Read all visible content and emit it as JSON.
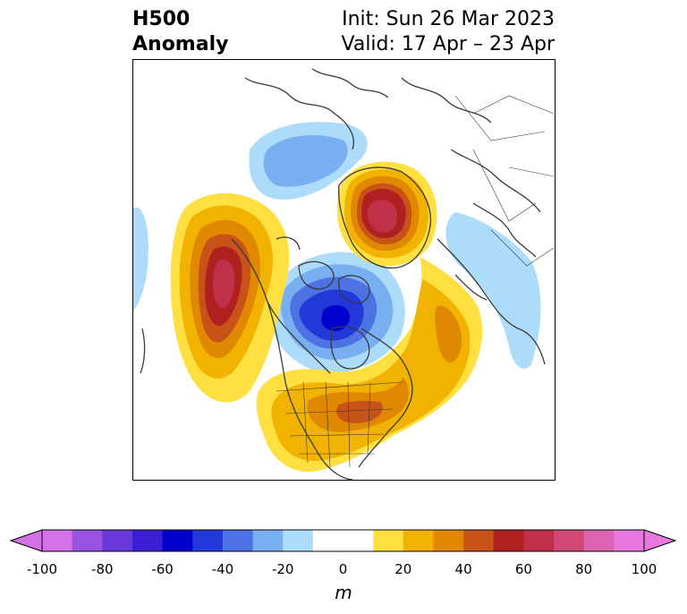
{
  "title": {
    "left_line1": "H500",
    "left_line2": "Anomaly",
    "right_line1": "Init: Sun 26 Mar 2023",
    "right_line2": "Valid: 17 Apr – 23 Apr"
  },
  "colorbar": {
    "unit": "m",
    "ticks": [
      "-100",
      "-80",
      "-60",
      "-40",
      "-20",
      "0",
      "20",
      "40",
      "60",
      "80",
      "100"
    ],
    "colors": [
      "#d670e8",
      "#9a52e0",
      "#6a38d8",
      "#3c1ed4",
      "#0000cc",
      "#2238d8",
      "#4c72e4",
      "#78aff0",
      "#acdcfa",
      "#ffffff",
      "#ffffff",
      "#ffe040",
      "#f2b200",
      "#e08800",
      "#c85318",
      "#b02020",
      "#c03048",
      "#d04878",
      "#dc64b0",
      "#e878e0"
    ],
    "min_color": "#d670e8",
    "max_color": "#e878e0"
  },
  "map": {
    "projection": "north-polar stereographic",
    "features": [
      "coastlines",
      "country-borders",
      "us-state-borders"
    ]
  }
}
